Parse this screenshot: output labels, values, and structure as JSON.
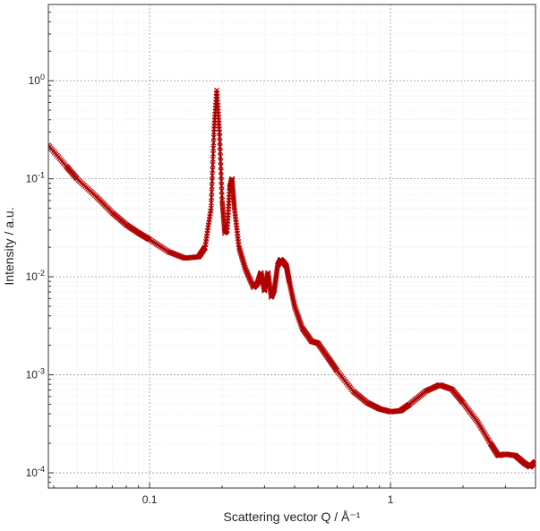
{
  "chart_data": {
    "type": "line",
    "title": "",
    "xlabel": "Scattering vector Q / Å⁻¹",
    "ylabel": "Intensity / a.u.",
    "x_scale": "log",
    "y_scale": "log",
    "xlim": [
      0.038,
      4.0
    ],
    "ylim": [
      7e-05,
      6.0
    ],
    "x_major_ticks": [
      {
        "value": 0.1,
        "label": "0.1"
      },
      {
        "value": 1,
        "label": "1"
      }
    ],
    "y_major_ticks": [
      {
        "value": 1,
        "base": "10",
        "exp": "0"
      },
      {
        "value": 0.1,
        "base": "10",
        "exp": "-1"
      },
      {
        "value": 0.01,
        "base": "10",
        "exp": "-2"
      },
      {
        "value": 0.001,
        "base": "10",
        "exp": "-3"
      },
      {
        "value": 0.0001,
        "base": "10",
        "exp": "-4"
      }
    ],
    "grid": true,
    "legend": "none",
    "line_color": "#b00000",
    "series": [
      {
        "marker": "x",
        "points": [
          [
            0.038,
            0.22
          ],
          [
            0.045,
            0.135
          ],
          [
            0.05,
            0.1
          ],
          [
            0.06,
            0.066
          ],
          [
            0.07,
            0.045
          ],
          [
            0.08,
            0.034
          ],
          [
            0.09,
            0.028
          ],
          [
            0.1,
            0.024
          ],
          [
            0.12,
            0.018
          ],
          [
            0.14,
            0.0155
          ],
          [
            0.16,
            0.016
          ],
          [
            0.17,
            0.02
          ],
          [
            0.18,
            0.05
          ],
          [
            0.185,
            0.3
          ],
          [
            0.19,
            0.8
          ],
          [
            0.195,
            0.3
          ],
          [
            0.2,
            0.06
          ],
          [
            0.205,
            0.028
          ],
          [
            0.21,
            0.03
          ],
          [
            0.215,
            0.08
          ],
          [
            0.22,
            0.1
          ],
          [
            0.225,
            0.05
          ],
          [
            0.235,
            0.02
          ],
          [
            0.25,
            0.012
          ],
          [
            0.27,
            0.0078
          ],
          [
            0.28,
            0.0085
          ],
          [
            0.29,
            0.011
          ],
          [
            0.3,
            0.0072
          ],
          [
            0.31,
            0.011
          ],
          [
            0.32,
            0.0062
          ],
          [
            0.33,
            0.0075
          ],
          [
            0.34,
            0.013
          ],
          [
            0.35,
            0.015
          ],
          [
            0.36,
            0.014
          ],
          [
            0.37,
            0.0128
          ],
          [
            0.38,
            0.009
          ],
          [
            0.4,
            0.005
          ],
          [
            0.43,
            0.003
          ],
          [
            0.47,
            0.0022
          ],
          [
            0.5,
            0.0021
          ],
          [
            0.55,
            0.0015
          ],
          [
            0.6,
            0.0011
          ],
          [
            0.7,
            0.00068
          ],
          [
            0.8,
            0.00052
          ],
          [
            0.9,
            0.00045
          ],
          [
            1.0,
            0.00042
          ],
          [
            1.1,
            0.00043
          ],
          [
            1.2,
            0.0005
          ],
          [
            1.4,
            0.00068
          ],
          [
            1.6,
            0.00079
          ],
          [
            1.8,
            0.00071
          ],
          [
            2.0,
            0.00052
          ],
          [
            2.3,
            0.00033
          ],
          [
            2.6,
            0.0002
          ],
          [
            2.8,
            0.00015
          ],
          [
            3.0,
            0.000155
          ],
          [
            3.3,
            0.00015
          ],
          [
            3.6,
            0.000125
          ],
          [
            3.8,
            0.000115
          ],
          [
            4.0,
            0.00013
          ]
        ]
      }
    ]
  }
}
